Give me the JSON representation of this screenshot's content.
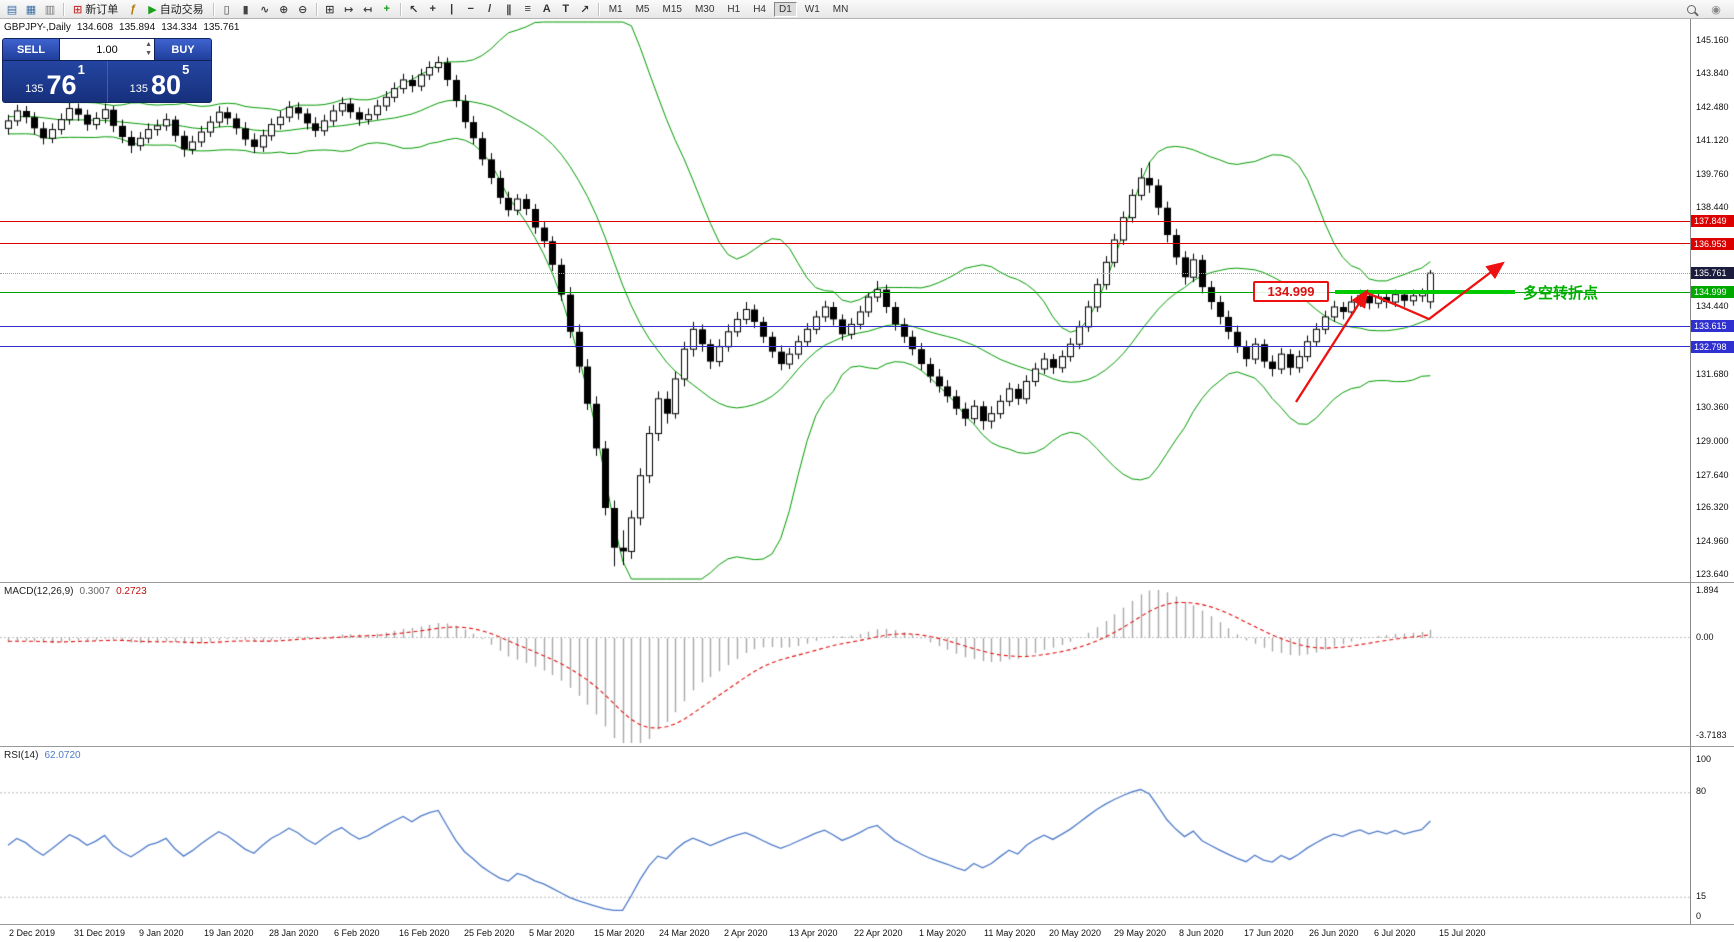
{
  "toolbar": {
    "new_order_label": "新订单",
    "autotrading_label": "自动交易",
    "timeframes": [
      "M1",
      "M5",
      "M15",
      "M30",
      "H1",
      "H4",
      "D1",
      "W1",
      "MN"
    ],
    "active_timeframe": "D1",
    "icons": [
      {
        "name": "new-chart-icon",
        "glyph": "▤",
        "color": "#3a6ea5"
      },
      {
        "name": "profiles-icon",
        "glyph": "▦",
        "color": "#3a6ea5"
      },
      {
        "name": "market-watch-icon",
        "glyph": "▥",
        "color": "#777777"
      },
      {
        "sep": true
      },
      {
        "name": "new-order-button",
        "glyph_name": "new-order-icon",
        "glyph": "⊞",
        "color": "#cc3333",
        "label_key": "new_order_label"
      },
      {
        "name": "metaeditor-icon",
        "glyph": "ƒ",
        "color": "#b07800"
      },
      {
        "name": "autotrading-button",
        "glyph_name": "autotrading-play-icon",
        "glyph": "▶",
        "color": "#18a018",
        "label_key": "autotrading_label"
      },
      {
        "sep": true
      },
      {
        "name": "bar-chart-icon",
        "glyph": "▯",
        "color": "#444444"
      },
      {
        "name": "candlestick-chart-icon",
        "glyph": "▮",
        "color": "#444444"
      },
      {
        "name": "line-chart-icon",
        "glyph": "∿",
        "color": "#444444"
      },
      {
        "name": "zoom-in-icon",
        "glyph": "⊕",
        "color": "#444444"
      },
      {
        "name": "zoom-out-icon",
        "glyph": "⊖",
        "color": "#444444"
      },
      {
        "sep": true
      },
      {
        "name": "tile-windows-icon",
        "glyph": "⊞",
        "color": "#444444"
      },
      {
        "name": "auto-scroll-icon",
        "glyph": "↦",
        "color": "#444444"
      },
      {
        "name": "chart-shift-icon",
        "glyph": "↤",
        "color": "#444444"
      },
      {
        "name": "indicators-icon",
        "glyph": "+",
        "color": "#18a018"
      },
      {
        "sep": true
      },
      {
        "name": "cursor-icon",
        "glyph": "↖",
        "color": "#333333"
      },
      {
        "name": "crosshair-icon",
        "glyph": "+",
        "color": "#333333"
      },
      {
        "name": "vertical-line-icon",
        "glyph": "|",
        "color": "#333333"
      },
      {
        "name": "horizontal-line-icon",
        "glyph": "−",
        "color": "#333333"
      },
      {
        "name": "trendline-icon",
        "glyph": "/",
        "color": "#333333"
      },
      {
        "name": "channel-icon",
        "glyph": "∥",
        "color": "#333333"
      },
      {
        "name": "fibonacci-icon",
        "glyph": "≡",
        "color": "#333333"
      },
      {
        "name": "text-icon",
        "glyph": "A",
        "color": "#333333"
      },
      {
        "name": "label-icon",
        "glyph": "T",
        "color": "#333333"
      },
      {
        "name": "arrows-icon",
        "glyph": "↗",
        "color": "#333333"
      },
      {
        "sep": true
      }
    ],
    "right_icons": [
      {
        "name": "search-icon",
        "type": "magnifier"
      },
      {
        "name": "community-icon",
        "glyph": "◉"
      }
    ]
  },
  "symbol_header": {
    "symbol": "GBPJPY-,Daily",
    "open": "134.608",
    "high": "135.894",
    "low": "134.334",
    "close": "135.761"
  },
  "trade_panel": {
    "sell_label": "SELL",
    "buy_label": "BUY",
    "lot_value": "1.00",
    "spin_up": "▲",
    "spin_down": "▼",
    "bid_main": "135",
    "bid_big": "76",
    "bid_pip": "1",
    "ask_main": "135",
    "ask_big": "80",
    "ask_pip": "5"
  },
  "indicator_headers": {
    "macd_name": "MACD(12,26,9)",
    "macd_main": "0.3007",
    "macd_signal": "0.2723",
    "rsi_name": "RSI(14)",
    "rsi_value": "62.0720"
  },
  "axis": {
    "macd_scale": [
      "1.894",
      "0.00",
      "-3.7183"
    ],
    "rsi_scale": [
      "100",
      "80",
      "15",
      "0"
    ]
  },
  "annotations": {
    "price_flag": "134.999",
    "note": "多空转折点"
  },
  "chart_data": {
    "type": "candlestick",
    "symbol": "GBPJPY-",
    "timeframe": "Daily",
    "indicators": [
      "Bollinger Bands(20,2)",
      "MACD(12,26,9)",
      "RSI(14)"
    ],
    "y_ticks": [
      145.16,
      143.84,
      142.48,
      141.12,
      139.76,
      138.44,
      134.44,
      131.68,
      130.36,
      129.0,
      127.64,
      126.32,
      124.96,
      123.64
    ],
    "levels": [
      {
        "price": 137.849,
        "color_name": "red",
        "line": "#dd0000",
        "tag": "#dd0000",
        "style": "solid"
      },
      {
        "price": 136.953,
        "color_name": "red",
        "line": "#dd0000",
        "tag": "#dd0000",
        "style": "solid"
      },
      {
        "price": 135.761,
        "color_name": "gray-current",
        "line": "#9a9a9a",
        "tag": "#1c1c3e",
        "style": "dotted"
      },
      {
        "price": 134.999,
        "color_name": "green",
        "line": "#00a400",
        "tag": "#00a800",
        "style": "solid"
      },
      {
        "price": 133.615,
        "color_name": "blue",
        "line": "#3030d0",
        "tag": "#3030d0",
        "style": "solid"
      },
      {
        "price": 132.798,
        "color_name": "blue",
        "line": "#3030d0",
        "tag": "#3030d0",
        "style": "solid"
      }
    ],
    "x_labels": [
      "2 Dec 2019",
      "31 Dec 2019",
      "9 Jan 2020",
      "19 Jan 2020",
      "28 Jan 2020",
      "6 Feb 2020",
      "16 Feb 2020",
      "25 Feb 2020",
      "5 Mar 2020",
      "15 Mar 2020",
      "24 Mar 2020",
      "2 Apr 2020",
      "13 Apr 2020",
      "22 Apr 2020",
      "1 May 2020",
      "11 May 2020",
      "20 May 2020",
      "29 May 2020",
      "8 Jun 2020",
      "17 Jun 2020",
      "26 Jun 2020",
      "6 Jul 2020",
      "15 Jul 2020"
    ],
    "prehistory_closes": [
      142.6,
      142.2,
      141.8,
      142.1,
      142.5,
      142.9,
      142.6,
      142.2,
      141.9,
      142.3,
      142.7,
      142.4,
      142.0,
      141.7,
      142.0,
      142.4,
      142.8,
      142.5,
      142.1,
      141.8,
      142.2,
      142.6,
      142.3,
      141.9,
      141.6,
      141.9,
      142.3,
      142.0,
      141.7,
      141.4
    ],
    "candles": [
      [
        141.6,
        142.15,
        141.35,
        141.9
      ],
      [
        141.9,
        142.55,
        141.7,
        142.3
      ],
      [
        142.3,
        142.5,
        141.8,
        142.05
      ],
      [
        142.05,
        142.25,
        141.35,
        141.6
      ],
      [
        141.6,
        141.85,
        140.95,
        141.2
      ],
      [
        141.2,
        141.8,
        141.0,
        141.55
      ],
      [
        141.55,
        142.2,
        141.35,
        141.95
      ],
      [
        141.95,
        142.65,
        141.75,
        142.4
      ],
      [
        142.4,
        142.6,
        141.9,
        142.15
      ],
      [
        142.15,
        142.35,
        141.5,
        141.75
      ],
      [
        141.75,
        142.25,
        141.55,
        142.0
      ],
      [
        142.0,
        142.6,
        141.8,
        142.35
      ],
      [
        142.35,
        142.5,
        141.45,
        141.7
      ],
      [
        141.7,
        141.95,
        141.0,
        141.25
      ],
      [
        141.25,
        141.5,
        140.6,
        140.9
      ],
      [
        140.9,
        141.45,
        140.7,
        141.2
      ],
      [
        141.2,
        141.8,
        141.0,
        141.55
      ],
      [
        141.55,
        141.95,
        141.3,
        141.7
      ],
      [
        141.7,
        142.2,
        141.5,
        141.95
      ],
      [
        141.95,
        142.1,
        141.05,
        141.3
      ],
      [
        141.3,
        141.5,
        140.45,
        140.75
      ],
      [
        140.75,
        141.3,
        140.55,
        141.05
      ],
      [
        141.05,
        141.7,
        140.85,
        141.45
      ],
      [
        141.45,
        142.1,
        141.25,
        141.85
      ],
      [
        141.85,
        142.5,
        141.65,
        142.25
      ],
      [
        142.25,
        142.45,
        141.75,
        142.0
      ],
      [
        142.0,
        142.2,
        141.35,
        141.6
      ],
      [
        141.6,
        141.85,
        140.9,
        141.15
      ],
      [
        141.15,
        141.4,
        140.6,
        140.85
      ],
      [
        140.85,
        141.55,
        140.65,
        141.3
      ],
      [
        141.3,
        142.0,
        141.1,
        141.75
      ],
      [
        141.75,
        142.3,
        141.55,
        142.05
      ],
      [
        142.05,
        142.7,
        141.85,
        142.45
      ],
      [
        142.45,
        142.65,
        141.95,
        142.2
      ],
      [
        142.2,
        142.4,
        141.55,
        141.8
      ],
      [
        141.8,
        142.05,
        141.25,
        141.5
      ],
      [
        141.5,
        142.15,
        141.3,
        141.9
      ],
      [
        141.9,
        142.55,
        141.7,
        142.3
      ],
      [
        142.3,
        142.85,
        142.1,
        142.6
      ],
      [
        142.6,
        142.8,
        142.0,
        142.25
      ],
      [
        142.25,
        142.45,
        141.7,
        141.95
      ],
      [
        141.95,
        142.4,
        141.75,
        142.15
      ],
      [
        142.15,
        142.75,
        141.95,
        142.5
      ],
      [
        142.5,
        143.1,
        142.3,
        142.85
      ],
      [
        142.85,
        143.45,
        142.65,
        143.2
      ],
      [
        143.2,
        143.8,
        143.0,
        143.55
      ],
      [
        143.55,
        143.75,
        143.05,
        143.3
      ],
      [
        143.3,
        144.0,
        143.1,
        143.75
      ],
      [
        143.75,
        144.3,
        143.55,
        144.05
      ],
      [
        144.05,
        144.5,
        143.85,
        144.25
      ],
      [
        144.25,
        144.45,
        143.3,
        143.55
      ],
      [
        143.55,
        143.75,
        142.45,
        142.7
      ],
      [
        142.7,
        142.95,
        141.6,
        141.85
      ],
      [
        141.85,
        142.1,
        140.95,
        141.2
      ],
      [
        141.2,
        141.45,
        140.1,
        140.35
      ],
      [
        140.35,
        140.6,
        139.35,
        139.6
      ],
      [
        139.6,
        139.9,
        138.55,
        138.8
      ],
      [
        138.8,
        139.05,
        138.05,
        138.3
      ],
      [
        138.3,
        138.95,
        138.1,
        138.75
      ],
      [
        138.75,
        138.95,
        138.1,
        138.35
      ],
      [
        138.35,
        138.55,
        137.35,
        137.6
      ],
      [
        137.6,
        137.85,
        136.8,
        137.05
      ],
      [
        137.05,
        137.25,
        135.85,
        136.1
      ],
      [
        136.1,
        136.35,
        134.65,
        134.9
      ],
      [
        134.9,
        135.2,
        133.15,
        133.4
      ],
      [
        133.4,
        133.7,
        131.75,
        132.0
      ],
      [
        132.0,
        132.3,
        130.25,
        130.5
      ],
      [
        130.5,
        130.8,
        128.4,
        128.7
      ],
      [
        128.7,
        129.0,
        126.0,
        126.3
      ],
      [
        126.3,
        126.6,
        123.95,
        124.7
      ],
      [
        124.7,
        125.4,
        124.0,
        124.55
      ],
      [
        124.55,
        126.2,
        124.25,
        125.9
      ],
      [
        125.9,
        127.9,
        125.6,
        127.6
      ],
      [
        127.6,
        129.6,
        127.3,
        129.3
      ],
      [
        129.3,
        131.0,
        129.0,
        130.7
      ],
      [
        130.7,
        131.0,
        129.7,
        130.1
      ],
      [
        130.1,
        131.8,
        129.9,
        131.5
      ],
      [
        131.5,
        133.0,
        131.2,
        132.7
      ],
      [
        132.7,
        133.8,
        132.4,
        133.5
      ],
      [
        133.5,
        133.7,
        132.6,
        132.9
      ],
      [
        132.9,
        133.1,
        131.9,
        132.2
      ],
      [
        132.2,
        133.1,
        132.0,
        132.8
      ],
      [
        132.8,
        133.7,
        132.6,
        133.4
      ],
      [
        133.4,
        134.2,
        133.2,
        133.9
      ],
      [
        133.9,
        134.6,
        133.7,
        134.3
      ],
      [
        134.3,
        134.5,
        133.55,
        133.8
      ],
      [
        133.8,
        134.0,
        132.95,
        133.2
      ],
      [
        133.2,
        133.4,
        132.35,
        132.6
      ],
      [
        132.6,
        132.85,
        131.85,
        132.1
      ],
      [
        132.1,
        132.75,
        131.9,
        132.5
      ],
      [
        132.5,
        133.25,
        132.3,
        133.0
      ],
      [
        133.0,
        133.75,
        132.8,
        133.5
      ],
      [
        133.5,
        134.25,
        133.3,
        134.0
      ],
      [
        134.0,
        134.65,
        133.8,
        134.4
      ],
      [
        134.4,
        134.6,
        133.65,
        133.9
      ],
      [
        133.9,
        134.1,
        133.05,
        133.3
      ],
      [
        133.3,
        133.95,
        133.1,
        133.7
      ],
      [
        133.7,
        134.45,
        133.5,
        134.2
      ],
      [
        134.2,
        135.0,
        134.0,
        134.8
      ],
      [
        134.8,
        135.45,
        134.6,
        135.1
      ],
      [
        135.1,
        135.3,
        134.15,
        134.4
      ],
      [
        134.4,
        134.6,
        133.45,
        133.7
      ],
      [
        133.7,
        133.95,
        132.95,
        133.2
      ],
      [
        133.2,
        133.45,
        132.45,
        132.7
      ],
      [
        132.7,
        132.95,
        131.85,
        132.1
      ],
      [
        132.1,
        132.35,
        131.35,
        131.6
      ],
      [
        131.6,
        131.9,
        130.95,
        131.2
      ],
      [
        131.2,
        131.45,
        130.55,
        130.8
      ],
      [
        130.8,
        131.05,
        130.05,
        130.3
      ],
      [
        130.3,
        130.55,
        129.6,
        129.9
      ],
      [
        129.9,
        130.65,
        129.7,
        130.4
      ],
      [
        130.4,
        130.6,
        129.45,
        129.8
      ],
      [
        129.8,
        130.4,
        129.5,
        130.1
      ],
      [
        130.1,
        130.85,
        129.9,
        130.6
      ],
      [
        130.6,
        131.35,
        130.4,
        131.1
      ],
      [
        131.1,
        131.3,
        130.45,
        130.7
      ],
      [
        130.7,
        131.65,
        130.5,
        131.4
      ],
      [
        131.4,
        132.15,
        131.2,
        131.9
      ],
      [
        131.9,
        132.55,
        131.7,
        132.3
      ],
      [
        132.3,
        132.5,
        131.7,
        131.95
      ],
      [
        131.95,
        132.65,
        131.75,
        132.4
      ],
      [
        132.4,
        133.15,
        132.2,
        132.9
      ],
      [
        132.9,
        133.85,
        132.7,
        133.6
      ],
      [
        133.6,
        134.65,
        133.4,
        134.4
      ],
      [
        134.4,
        135.55,
        134.2,
        135.3
      ],
      [
        135.3,
        136.45,
        135.1,
        136.2
      ],
      [
        136.2,
        137.35,
        136.0,
        137.1
      ],
      [
        137.1,
        138.25,
        136.9,
        138.0
      ],
      [
        138.0,
        139.15,
        137.8,
        138.9
      ],
      [
        138.9,
        140.0,
        138.7,
        139.6
      ],
      [
        139.6,
        140.25,
        139.0,
        139.3
      ],
      [
        139.3,
        139.55,
        138.1,
        138.4
      ],
      [
        138.4,
        138.65,
        137.0,
        137.3
      ],
      [
        137.3,
        137.55,
        136.1,
        136.4
      ],
      [
        136.4,
        136.65,
        135.3,
        135.6
      ],
      [
        135.6,
        136.55,
        135.4,
        136.3
      ],
      [
        136.3,
        136.5,
        134.95,
        135.2
      ],
      [
        135.2,
        135.45,
        134.3,
        134.6
      ],
      [
        134.6,
        134.85,
        133.7,
        134.0
      ],
      [
        134.0,
        134.25,
        133.1,
        133.4
      ],
      [
        133.4,
        133.65,
        132.55,
        132.8
      ],
      [
        132.8,
        133.05,
        132.0,
        132.3
      ],
      [
        132.3,
        133.15,
        132.1,
        132.9
      ],
      [
        132.9,
        133.1,
        131.95,
        132.2
      ],
      [
        132.2,
        132.45,
        131.6,
        131.9
      ],
      [
        131.9,
        132.75,
        131.7,
        132.5
      ],
      [
        132.5,
        132.7,
        131.65,
        131.95
      ],
      [
        131.95,
        132.65,
        131.75,
        132.4
      ],
      [
        132.4,
        133.25,
        132.2,
        133.0
      ],
      [
        133.0,
        133.75,
        132.8,
        133.5
      ],
      [
        133.5,
        134.25,
        133.3,
        134.0
      ],
      [
        134.0,
        134.65,
        133.8,
        134.4
      ],
      [
        134.4,
        134.6,
        133.9,
        134.2
      ],
      [
        134.2,
        134.85,
        134.0,
        134.6
      ],
      [
        134.6,
        135.1,
        134.4,
        134.85
      ],
      [
        134.85,
        135.0,
        134.3,
        134.55
      ],
      [
        134.55,
        135.05,
        134.35,
        134.8
      ],
      [
        134.8,
        135.0,
        134.35,
        134.6
      ],
      [
        134.6,
        135.1,
        134.4,
        134.9
      ],
      [
        134.9,
        135.05,
        134.4,
        134.65
      ],
      [
        134.65,
        135.1,
        134.45,
        134.85
      ],
      [
        134.85,
        135.15,
        134.6,
        135.0
      ],
      [
        134.608,
        135.894,
        134.334,
        135.761
      ]
    ]
  }
}
